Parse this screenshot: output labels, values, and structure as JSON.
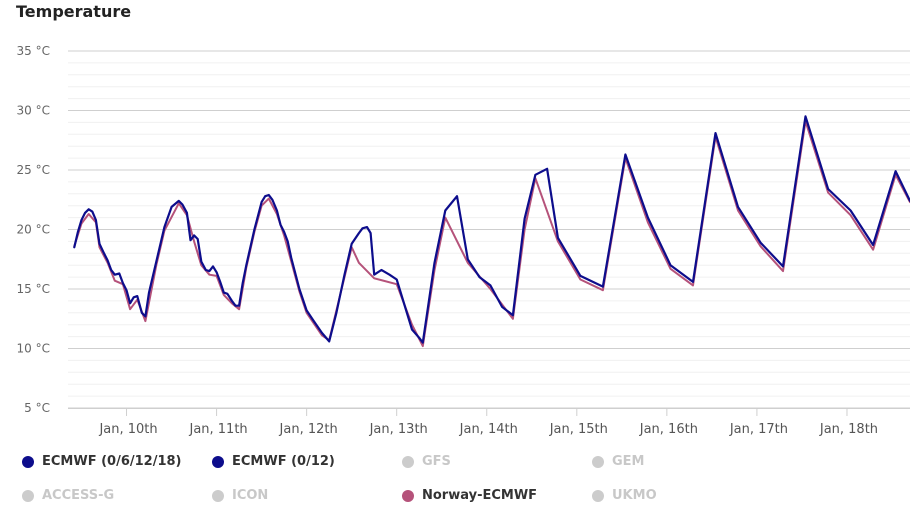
{
  "title": "Temperature",
  "chart_data": {
    "type": "line",
    "title": "Temperature",
    "ylim": [
      5,
      35
    ],
    "y_ticks": [
      "5 °C",
      "10 °C",
      "15 °C",
      "20 °C",
      "25 °C",
      "30 °C",
      "35 °C"
    ],
    "y_tick_values": [
      5,
      10,
      15,
      20,
      25,
      30,
      35
    ],
    "xlim": [
      9.35,
      18.7
    ],
    "x_ticks": [
      {
        "label": "Jan, 10th",
        "x": 10
      },
      {
        "label": "Jan, 11th",
        "x": 11
      },
      {
        "label": "Jan, 12th",
        "x": 12
      },
      {
        "label": "Jan, 13th",
        "x": 13
      },
      {
        "label": "Jan, 14th",
        "x": 14
      },
      {
        "label": "Jan, 15th",
        "x": 15
      },
      {
        "label": "Jan, 16th",
        "x": 16
      },
      {
        "label": "Jan, 17th",
        "x": 17
      },
      {
        "label": "Jan, 18th",
        "x": 18
      }
    ],
    "grid": true,
    "legend_position": "bottom",
    "series": [
      {
        "name": "ECMWF (0/6/12/18)",
        "color": "#0d0d8c",
        "visible": true,
        "points": [
          [
            9.42,
            18.5
          ],
          [
            9.46,
            19.8
          ],
          [
            9.5,
            20.8
          ],
          [
            9.54,
            21.4
          ],
          [
            9.58,
            21.7
          ],
          [
            9.62,
            21.5
          ],
          [
            9.66,
            20.8
          ],
          [
            9.7,
            18.8
          ],
          [
            9.75,
            18.0
          ],
          [
            9.79,
            17.4
          ],
          [
            9.83,
            16.6
          ],
          [
            9.87,
            16.2
          ],
          [
            9.92,
            16.3
          ],
          [
            9.96,
            15.5
          ],
          [
            10.0,
            14.9
          ],
          [
            10.04,
            13.8
          ],
          [
            10.08,
            14.3
          ],
          [
            10.12,
            14.4
          ],
          [
            10.17,
            13.0
          ],
          [
            10.21,
            12.7
          ],
          [
            10.25,
            14.7
          ],
          [
            10.33,
            17.3
          ],
          [
            10.42,
            20.2
          ],
          [
            10.5,
            21.9
          ],
          [
            10.58,
            22.4
          ],
          [
            10.62,
            22.1
          ],
          [
            10.67,
            21.4
          ],
          [
            10.71,
            19.1
          ],
          [
            10.75,
            19.5
          ],
          [
            10.79,
            19.2
          ],
          [
            10.83,
            17.3
          ],
          [
            10.88,
            16.6
          ],
          [
            10.92,
            16.5
          ],
          [
            10.96,
            16.9
          ],
          [
            11.0,
            16.4
          ],
          [
            11.04,
            15.6
          ],
          [
            11.08,
            14.7
          ],
          [
            11.12,
            14.6
          ],
          [
            11.17,
            14.0
          ],
          [
            11.21,
            13.6
          ],
          [
            11.25,
            13.6
          ],
          [
            11.29,
            15.5
          ],
          [
            11.33,
            17.0
          ],
          [
            11.42,
            20.0
          ],
          [
            11.5,
            22.3
          ],
          [
            11.54,
            22.8
          ],
          [
            11.58,
            22.9
          ],
          [
            11.62,
            22.5
          ],
          [
            11.67,
            21.6
          ],
          [
            11.71,
            20.4
          ],
          [
            11.75,
            19.8
          ],
          [
            11.79,
            19.0
          ],
          [
            11.83,
            17.6
          ],
          [
            11.92,
            15.0
          ],
          [
            12.0,
            13.2
          ],
          [
            12.08,
            12.3
          ],
          [
            12.17,
            11.3
          ],
          [
            12.25,
            10.6
          ],
          [
            12.33,
            13.0
          ],
          [
            12.42,
            16.2
          ],
          [
            12.5,
            18.8
          ],
          [
            12.58,
            19.7
          ],
          [
            12.62,
            20.1
          ],
          [
            12.67,
            20.2
          ],
          [
            12.71,
            19.7
          ],
          [
            12.75,
            16.2
          ],
          [
            12.83,
            16.6
          ],
          [
            12.92,
            16.2
          ],
          [
            13.0,
            15.8
          ],
          [
            13.17,
            11.6
          ],
          [
            13.25,
            10.9
          ],
          [
            13.29,
            10.5
          ],
          [
            13.42,
            17.2
          ],
          [
            13.54,
            21.6
          ],
          [
            13.67,
            22.8
          ],
          [
            13.79,
            17.5
          ],
          [
            13.92,
            16.0
          ],
          [
            14.04,
            15.3
          ],
          [
            14.17,
            13.5
          ],
          [
            14.29,
            12.8
          ],
          [
            14.42,
            20.9
          ],
          [
            14.54,
            24.6
          ],
          [
            14.67,
            25.1
          ],
          [
            14.79,
            19.3
          ],
          [
            15.04,
            16.1
          ],
          [
            15.29,
            15.2
          ],
          [
            15.54,
            26.3
          ],
          [
            15.79,
            21.0
          ],
          [
            16.04,
            17.0
          ],
          [
            16.29,
            15.6
          ],
          [
            16.54,
            28.1
          ],
          [
            16.79,
            21.9
          ],
          [
            17.04,
            18.9
          ],
          [
            17.29,
            16.9
          ],
          [
            17.54,
            29.5
          ],
          [
            17.79,
            23.4
          ],
          [
            18.04,
            21.6
          ],
          [
            18.29,
            18.7
          ],
          [
            18.54,
            24.9
          ],
          [
            18.7,
            22.4
          ]
        ]
      },
      {
        "name": "ECMWF (0/12)",
        "color": "#0d0d8c",
        "visible": true,
        "points": []
      },
      {
        "name": "GFS",
        "color": "#cccccc",
        "visible": false,
        "points": []
      },
      {
        "name": "GEM",
        "color": "#cccccc",
        "visible": false,
        "points": []
      },
      {
        "name": "ACCESS-G",
        "color": "#cccccc",
        "visible": false,
        "points": []
      },
      {
        "name": "ICON",
        "color": "#cccccc",
        "visible": false,
        "points": []
      },
      {
        "name": "Norway-ECMWF",
        "color": "#b5527a",
        "visible": true,
        "points": [
          [
            9.42,
            18.6
          ],
          [
            9.5,
            20.5
          ],
          [
            9.58,
            21.3
          ],
          [
            9.66,
            20.6
          ],
          [
            9.7,
            18.5
          ],
          [
            9.79,
            17.2
          ],
          [
            9.87,
            15.7
          ],
          [
            9.96,
            15.4
          ],
          [
            10.04,
            13.3
          ],
          [
            10.12,
            14.1
          ],
          [
            10.21,
            12.3
          ],
          [
            10.33,
            17.0
          ],
          [
            10.42,
            19.9
          ],
          [
            10.58,
            22.2
          ],
          [
            10.67,
            21.2
          ],
          [
            10.75,
            19.0
          ],
          [
            10.83,
            17.0
          ],
          [
            10.92,
            16.2
          ],
          [
            11.0,
            16.1
          ],
          [
            11.08,
            14.5
          ],
          [
            11.17,
            13.8
          ],
          [
            11.25,
            13.3
          ],
          [
            11.33,
            16.8
          ],
          [
            11.42,
            19.8
          ],
          [
            11.5,
            22.0
          ],
          [
            11.58,
            22.6
          ],
          [
            11.67,
            21.3
          ],
          [
            11.75,
            19.5
          ],
          [
            11.83,
            17.3
          ],
          [
            11.92,
            14.8
          ],
          [
            12.0,
            13.0
          ],
          [
            12.17,
            11.1
          ],
          [
            12.25,
            10.7
          ],
          [
            12.42,
            16.0
          ],
          [
            12.5,
            18.5
          ],
          [
            12.58,
            17.2
          ],
          [
            12.75,
            15.9
          ],
          [
            13.0,
            15.4
          ],
          [
            13.17,
            12.0
          ],
          [
            13.29,
            10.2
          ],
          [
            13.42,
            16.6
          ],
          [
            13.54,
            21.0
          ],
          [
            13.79,
            17.2
          ],
          [
            14.04,
            15.0
          ],
          [
            14.29,
            12.5
          ],
          [
            14.42,
            20.0
          ],
          [
            14.54,
            24.3
          ],
          [
            14.79,
            19.0
          ],
          [
            15.04,
            15.8
          ],
          [
            15.29,
            14.9
          ],
          [
            15.54,
            26.0
          ],
          [
            15.79,
            20.6
          ],
          [
            16.04,
            16.7
          ],
          [
            16.29,
            15.3
          ],
          [
            16.54,
            27.8
          ],
          [
            16.79,
            21.6
          ],
          [
            17.04,
            18.6
          ],
          [
            17.29,
            16.5
          ],
          [
            17.54,
            29.1
          ],
          [
            17.79,
            23.1
          ],
          [
            18.04,
            21.2
          ],
          [
            18.29,
            18.3
          ],
          [
            18.54,
            24.6
          ],
          [
            18.7,
            22.3
          ]
        ]
      },
      {
        "name": "UKMO",
        "color": "#cccccc",
        "visible": false,
        "points": []
      }
    ]
  },
  "legend": [
    {
      "label": "ECMWF (0/6/12/18)",
      "color": "#0d0d8c",
      "active": true
    },
    {
      "label": "ECMWF (0/12)",
      "color": "#0d0d8c",
      "active": true
    },
    {
      "label": "GFS",
      "color": "#cccccc",
      "active": false
    },
    {
      "label": "GEM",
      "color": "#cccccc",
      "active": false
    },
    {
      "label": "ACCESS-G",
      "color": "#cccccc",
      "active": false
    },
    {
      "label": "ICON",
      "color": "#cccccc",
      "active": false
    },
    {
      "label": "Norway-ECMWF",
      "color": "#b5527a",
      "active": true
    },
    {
      "label": "UKMO",
      "color": "#cccccc",
      "active": false
    }
  ]
}
